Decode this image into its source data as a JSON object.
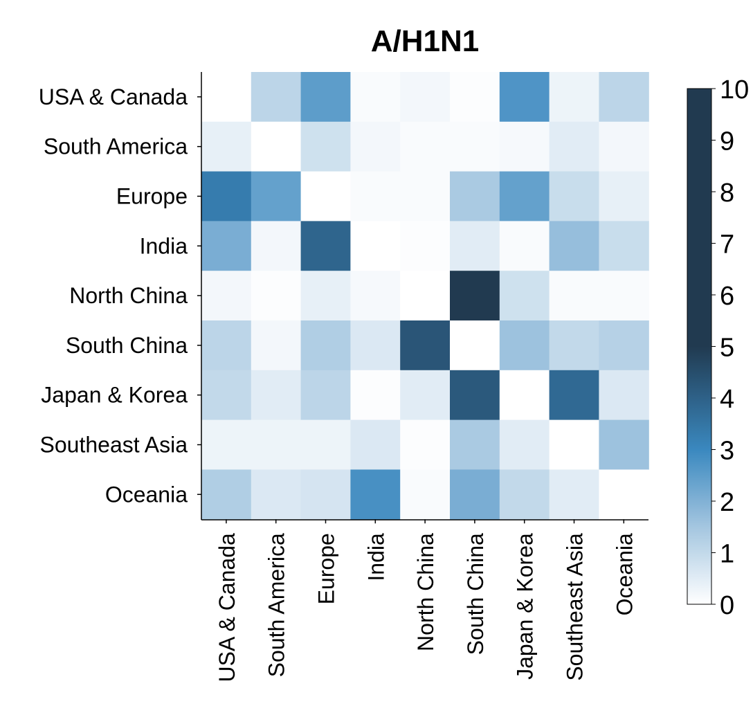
{
  "chart_data": {
    "type": "heatmap",
    "title": "A/H1N1",
    "xlabel": "",
    "ylabel": "",
    "rows": [
      "USA & Canada",
      "South America",
      "Europe",
      "India",
      "North China",
      "South China",
      "Japan & Korea",
      "Southeast Asia",
      "Oceania"
    ],
    "columns": [
      "USA & Canada",
      "South America",
      "Europe",
      "India",
      "North China",
      "South China",
      "Japan & Korea",
      "Southeast Asia",
      "Oceania"
    ],
    "values": [
      [
        0.0,
        1.1,
        2.5,
        0.1,
        0.2,
        0.05,
        2.7,
        0.3,
        1.1
      ],
      [
        0.4,
        0.0,
        0.8,
        0.2,
        0.1,
        0.1,
        0.15,
        0.5,
        0.2
      ],
      [
        3.3,
        2.4,
        0.0,
        0.1,
        0.1,
        1.4,
        2.4,
        0.9,
        0.4
      ],
      [
        2.1,
        0.2,
        3.9,
        0.0,
        0.05,
        0.5,
        0.1,
        1.7,
        0.9
      ],
      [
        0.2,
        0.05,
        0.4,
        0.15,
        0.0,
        6.2,
        0.8,
        0.1,
        0.1
      ],
      [
        1.1,
        0.2,
        1.3,
        0.6,
        4.3,
        0.0,
        1.6,
        1.0,
        1.2
      ],
      [
        1.0,
        0.5,
        1.1,
        0.05,
        0.5,
        4.2,
        0.0,
        3.8,
        0.6
      ],
      [
        0.3,
        0.3,
        0.3,
        0.6,
        0.05,
        1.4,
        0.5,
        0.0,
        1.6
      ],
      [
        1.3,
        0.6,
        0.7,
        2.8,
        0.1,
        2.1,
        1.0,
        0.5,
        0.0
      ]
    ],
    "colorbar": {
      "range": [
        0,
        10
      ],
      "ticks": [
        "0",
        "1",
        "2",
        "3",
        "4",
        "5",
        "6",
        "7",
        "8",
        "9",
        "10"
      ],
      "colors": [
        "#ffffff",
        "#a4c6e0",
        "#3a88bf",
        "#213a50"
      ]
    },
    "grid": false
  }
}
